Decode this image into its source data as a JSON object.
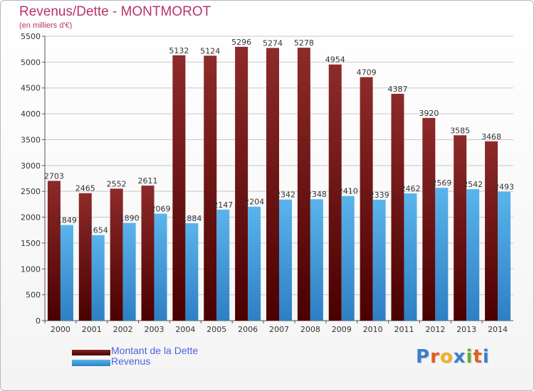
{
  "header": {
    "title": "Revenus/Dette - MONTMOROT",
    "subtitle": "(en milliers d'€)"
  },
  "legend": [
    {
      "label": "Montant de la Dette",
      "color": "#7a1a1a"
    },
    {
      "label": "Revenus",
      "color": "#4aa0e0"
    }
  ],
  "logo": {
    "letters": [
      "P",
      "r",
      "o",
      "x",
      "i",
      "t",
      "i"
    ],
    "colors": [
      "#3a7fd0",
      "#e06020",
      "#f0b020",
      "#3a7fd0",
      "#60b030",
      "#e06020",
      "#3a7fd0"
    ]
  },
  "chart_data": {
    "type": "bar",
    "categories": [
      "2000",
      "2001",
      "2002",
      "2003",
      "2004",
      "2005",
      "2006",
      "2007",
      "2008",
      "2009",
      "2010",
      "2011",
      "2012",
      "2013",
      "2014"
    ],
    "series": [
      {
        "name": "Montant de la Dette",
        "color": "#7a1a1a",
        "values": [
          2703,
          2465,
          2552,
          2611,
          5132,
          5124,
          5296,
          5274,
          5278,
          4954,
          4709,
          4387,
          3920,
          3585,
          3468
        ]
      },
      {
        "name": "Revenus",
        "color": "#4aa0e0",
        "values": [
          1849,
          1654,
          1890,
          2069,
          1884,
          2147,
          2204,
          2342,
          2348,
          2410,
          2339,
          2462,
          2569,
          2542,
          2493
        ]
      }
    ],
    "yticks": [
      0,
      500,
      1000,
      1500,
      2000,
      2500,
      3000,
      3500,
      4000,
      4500,
      5000,
      5500
    ],
    "ylim": [
      0,
      5500
    ],
    "grid": true,
    "legend_position": "bottom-left"
  }
}
